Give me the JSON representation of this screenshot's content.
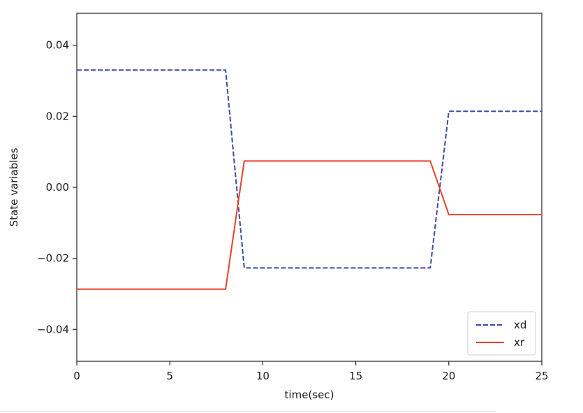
{
  "chart_data": {
    "type": "line",
    "title": "",
    "xlabel": "time(sec)",
    "ylabel": "State variables",
    "xlim": [
      0,
      25
    ],
    "ylim": [
      -0.049,
      0.049
    ],
    "xticks": [
      0,
      5,
      10,
      15,
      20,
      25
    ],
    "xtick_labels": [
      "0",
      "5",
      "10",
      "15",
      "20",
      "25"
    ],
    "yticks": [
      0.04,
      0.02,
      0.0,
      -0.02,
      -0.04
    ],
    "ytick_labels": [
      "0.04",
      "0.02",
      "0.00",
      "−0.02",
      "−0.04"
    ],
    "grid": false,
    "legend_position": "bottom-right",
    "series": [
      {
        "name": "xd",
        "color": "#3b4aa6",
        "style": "dashed",
        "x": [
          0,
          8,
          9,
          19,
          20,
          25
        ],
        "y": [
          0.033,
          0.033,
          -0.0227,
          -0.0227,
          0.0214,
          0.0214
        ]
      },
      {
        "name": "xr",
        "color": "#e8402a",
        "style": "solid",
        "x": [
          0,
          8,
          9,
          19,
          20,
          25
        ],
        "y": [
          -0.0287,
          -0.0287,
          0.0074,
          0.0074,
          -0.0077,
          -0.0077
        ]
      }
    ]
  }
}
